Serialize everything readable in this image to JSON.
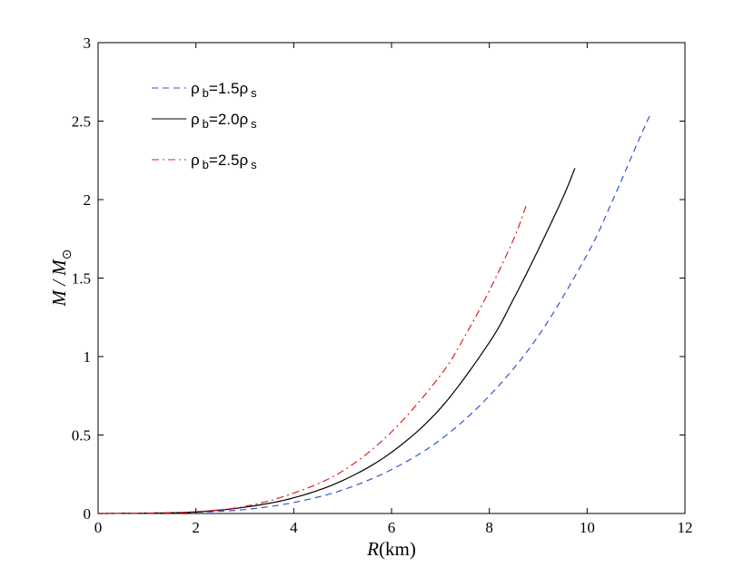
{
  "chart_data": {
    "type": "line",
    "xlabel_var": "R",
    "xlabel_unit": "(km)",
    "ylabel_main": "M / M",
    "ylabel_sub": "⊙",
    "xlim": [
      0,
      12
    ],
    "ylim": [
      0,
      3
    ],
    "xticks": [
      "0",
      "2",
      "4",
      "6",
      "8",
      "10",
      "12"
    ],
    "yticks": [
      "0",
      "0.5",
      "1",
      "1.5",
      "2",
      "2.5",
      "3"
    ],
    "grid": false,
    "legend_position": "top-left",
    "series": [
      {
        "name": "ρ b=1.5ρ s",
        "legend": {
          "a": "ρ",
          "b": "b",
          "c": "=1.5ρ",
          "d": "s"
        },
        "color": "#3355cc",
        "dash": "dashed",
        "x": [
          0,
          1,
          2,
          3,
          4,
          5,
          6,
          7,
          8,
          9,
          10,
          10.5,
          11,
          11.3
        ],
        "y": [
          0,
          0.002,
          0.008,
          0.025,
          0.07,
          0.15,
          0.28,
          0.47,
          0.75,
          1.13,
          1.65,
          1.98,
          2.34,
          2.55
        ]
      },
      {
        "name": "ρ b=2.0ρ s",
        "legend": {
          "a": "ρ",
          "b": "b",
          "c": "=2.0ρ",
          "d": "s"
        },
        "color": "#000000",
        "dash": "solid",
        "x": [
          0,
          1,
          2,
          3,
          4,
          5,
          6,
          7,
          8,
          8.5,
          9,
          9.5,
          9.75
        ],
        "y": [
          0,
          0.002,
          0.01,
          0.04,
          0.1,
          0.21,
          0.39,
          0.67,
          1.09,
          1.37,
          1.68,
          2.01,
          2.2
        ]
      },
      {
        "name": "ρ b=2.5ρ s",
        "legend": {
          "a": "ρ",
          "b": "b",
          "c": "=2.5ρ",
          "d": "s"
        },
        "color": "#dd2222",
        "dash": "dashdot",
        "x": [
          0,
          1,
          2,
          3,
          4,
          5,
          6,
          7,
          7.5,
          8,
          8.5,
          8.75
        ],
        "y": [
          0,
          0.003,
          0.012,
          0.045,
          0.13,
          0.27,
          0.52,
          0.88,
          1.13,
          1.42,
          1.75,
          1.96
        ]
      }
    ]
  }
}
